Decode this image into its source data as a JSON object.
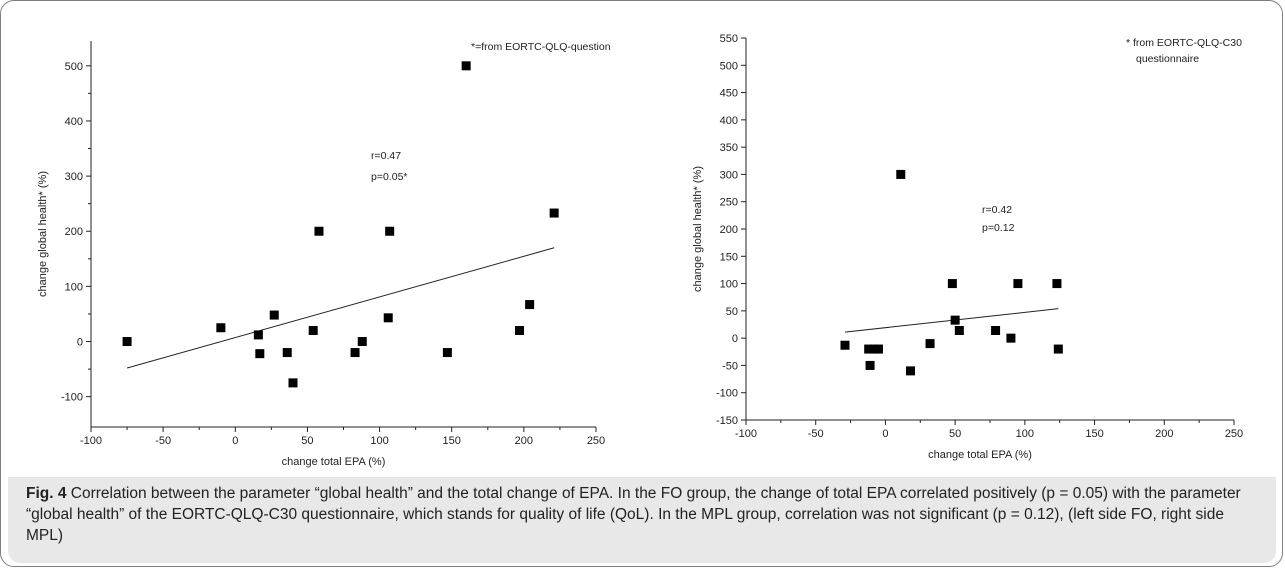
{
  "chart_data": [
    {
      "type": "scatter",
      "xlabel": "change total EPA (%)",
      "ylabel": "change global health* (%)",
      "xlim": [
        -100,
        250
      ],
      "ylim": [
        -155,
        545
      ],
      "xticks": [
        -100,
        -50,
        0,
        50,
        100,
        150,
        200,
        250
      ],
      "yticks": [
        -100,
        0,
        100,
        200,
        300,
        400,
        500
      ],
      "annotations": [
        "*=from EORTC-QLQ-questionnaire",
        "r=0.47",
        "p=0.05*"
      ],
      "regression_line": [
        [
          -75,
          -48
        ],
        [
          221,
          170
        ]
      ],
      "points": [
        [
          -75,
          0
        ],
        [
          -10,
          25
        ],
        [
          16,
          12
        ],
        [
          17,
          -22
        ],
        [
          27,
          48
        ],
        [
          36,
          -20
        ],
        [
          40,
          -75
        ],
        [
          54,
          20
        ],
        [
          58,
          200
        ],
        [
          83,
          -20
        ],
        [
          88,
          0
        ],
        [
          106,
          43
        ],
        [
          107,
          200
        ],
        [
          147,
          -20
        ],
        [
          160,
          500
        ],
        [
          197,
          20
        ],
        [
          204,
          67
        ],
        [
          221,
          233
        ]
      ],
      "grid": false
    },
    {
      "type": "scatter",
      "xlabel": "change total EPA (%)",
      "ylabel": "change global health* (%)",
      "xlim": [
        -100,
        250
      ],
      "ylim": [
        -150,
        550
      ],
      "xticks": [
        -100,
        -50,
        0,
        50,
        100,
        150,
        200,
        250
      ],
      "yticks": [
        -150,
        -100,
        -50,
        0,
        50,
        100,
        150,
        200,
        250,
        300,
        350,
        400,
        450,
        500,
        550
      ],
      "annotations": [
        "* from EORTC-QLQ-C30",
        "questionnaire",
        "r=0.42",
        "p=0.12"
      ],
      "regression_line": [
        [
          -29,
          11
        ],
        [
          124,
          54
        ]
      ],
      "points": [
        [
          -29,
          -13
        ],
        [
          -12,
          -20
        ],
        [
          -11,
          -50
        ],
        [
          -8,
          -20
        ],
        [
          -5,
          -20
        ],
        [
          11,
          300
        ],
        [
          18,
          -60
        ],
        [
          32,
          -10
        ],
        [
          48,
          100
        ],
        [
          50,
          33
        ],
        [
          53,
          14
        ],
        [
          79,
          14
        ],
        [
          90,
          0
        ],
        [
          95,
          100
        ],
        [
          123,
          100
        ],
        [
          124,
          -20
        ]
      ],
      "grid": false
    }
  ],
  "caption": {
    "label": "Fig. 4",
    "text": " Correlation between the parameter “global health” and the total change of EPA. In the FO group, the change of total EPA correlated positively (p = 0.05) with the parameter “global health” of the EORTC-QLQ-C30 questionnaire, which stands for quality of life (QoL). In the MPL group, correlation was not significant (p = 0.12), (left side FO, right side MPL)"
  }
}
